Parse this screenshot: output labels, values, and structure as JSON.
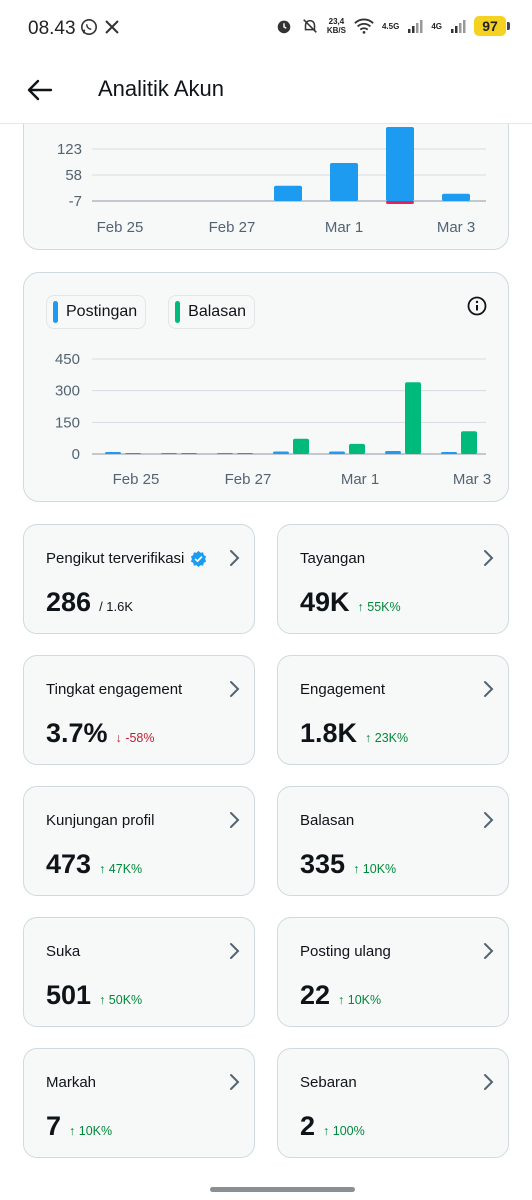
{
  "status_bar": {
    "time": "08.43",
    "speed_value": "23,4",
    "speed_unit": "KB/S",
    "net1": "4.5G",
    "net2": "4G",
    "battery": "97"
  },
  "header": {
    "title": "Analitik Akun",
    "back_icon": "arrow-left-icon"
  },
  "chart_data": [
    {
      "type": "bar",
      "categories": [
        "Feb 25",
        "Feb 26",
        "Feb 27",
        "Feb 28",
        "Mar 1",
        "Mar 2",
        "Mar 3"
      ],
      "x_tick_labels": [
        "Feb 25",
        "Feb 27",
        "Mar 1",
        "Mar 3"
      ],
      "y_ticks": [
        123,
        58,
        -7
      ],
      "ylim": [
        -7,
        185
      ],
      "series": [
        {
          "values": [
            0,
            0,
            0,
            38,
            95,
            185,
            18
          ],
          "color": "#1d9bf0"
        },
        {
          "values": [
            0,
            0,
            0,
            0,
            0,
            -6,
            0
          ],
          "color": "#e0245e"
        }
      ]
    },
    {
      "type": "bar",
      "categories": [
        "Feb 25",
        "Feb 26",
        "Feb 27",
        "Feb 28",
        "Mar 1",
        "Mar 2",
        "Mar 3"
      ],
      "x_tick_labels": [
        "Feb 25",
        "Feb 27",
        "Mar 1",
        "Mar 3"
      ],
      "y_ticks": [
        450,
        300,
        150,
        0
      ],
      "ylim": [
        0,
        450
      ],
      "legend": {
        "position": "top-left"
      },
      "series": [
        {
          "name": "Postingan",
          "values": [
            2,
            0,
            0,
            12,
            12,
            14,
            4
          ],
          "color": "#1d9bf0"
        },
        {
          "name": "Balasan",
          "values": [
            0,
            0,
            0,
            72,
            48,
            340,
            108
          ],
          "color": "#00ba7c"
        }
      ]
    }
  ],
  "stats": [
    {
      "label": "Pengikut terverifikasi",
      "value": "286",
      "sub": "/ 1.6K",
      "delta": "",
      "direction": "none",
      "verified": true
    },
    {
      "label": "Tayangan",
      "value": "49K",
      "sub": "",
      "delta": "55K%",
      "direction": "up"
    },
    {
      "label": "Tingkat engagement",
      "value": "3.7%",
      "sub": "",
      "delta": "-58%",
      "direction": "down"
    },
    {
      "label": "Engagement",
      "value": "1.8K",
      "sub": "",
      "delta": "23K%",
      "direction": "up"
    },
    {
      "label": "Kunjungan profil",
      "value": "473",
      "sub": "",
      "delta": "47K%",
      "direction": "up"
    },
    {
      "label": "Balasan",
      "value": "335",
      "sub": "",
      "delta": "10K%",
      "direction": "up"
    },
    {
      "label": "Suka",
      "value": "501",
      "sub": "",
      "delta": "50K%",
      "direction": "up"
    },
    {
      "label": "Posting ulang",
      "value": "22",
      "sub": "",
      "delta": "10K%",
      "direction": "up"
    },
    {
      "label": "Markah",
      "value": "7",
      "sub": "",
      "delta": "10K%",
      "direction": "up"
    },
    {
      "label": "Sebaran",
      "value": "2",
      "sub": "",
      "delta": "100%",
      "direction": "up"
    }
  ],
  "icons": {
    "chevron": "chevron-right-icon",
    "info": "info-icon",
    "verified": "verified-badge-icon",
    "arrow_up": "↑",
    "arrow_down": "↓"
  }
}
